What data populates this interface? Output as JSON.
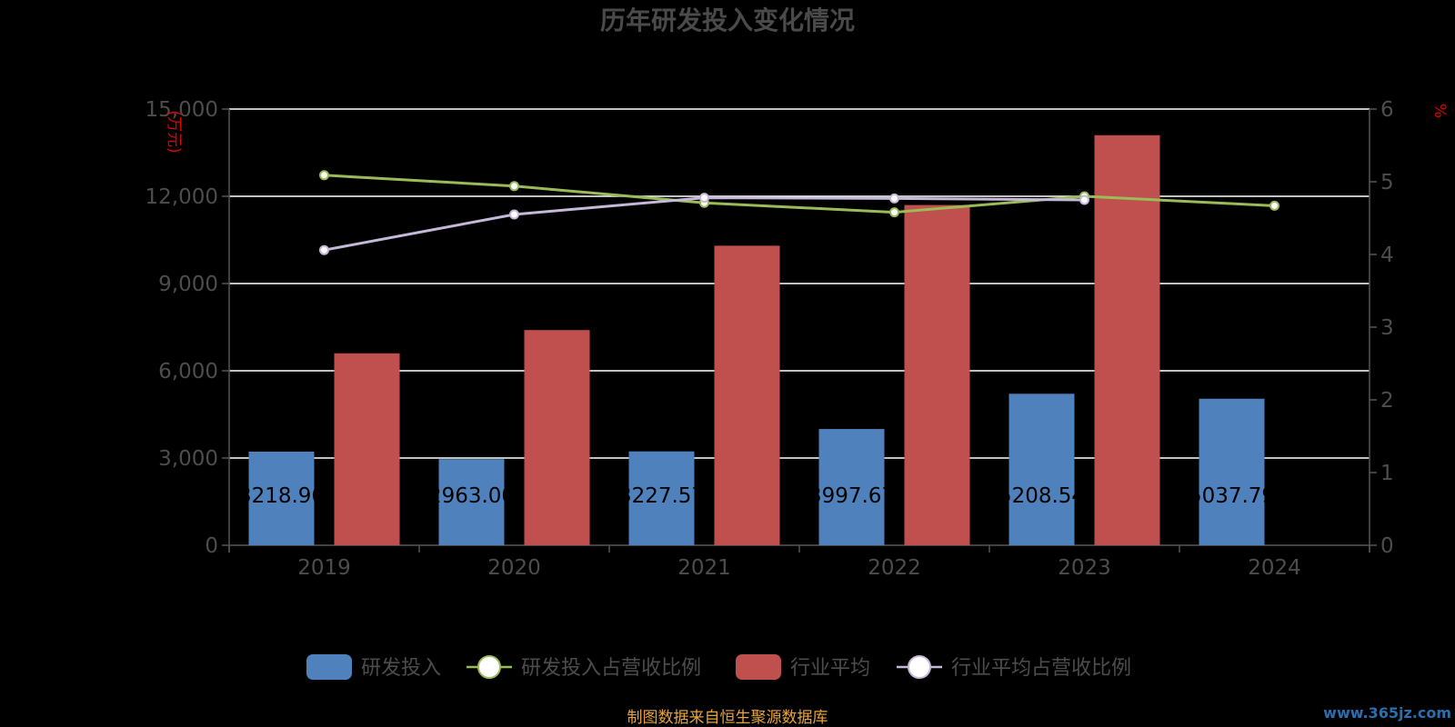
{
  "chart_data": {
    "type": "bar",
    "title": "历年研发投入变化情况",
    "categories": [
      "2019",
      "2020",
      "2021",
      "2022",
      "2023",
      "2024"
    ],
    "series": [
      {
        "name": "研发投入",
        "kind": "bar",
        "axis": "left",
        "color": "#4f81bd",
        "values": [
          3218.96,
          2963.0,
          3227.57,
          3997.67,
          5208.54,
          5037.79
        ],
        "labels": [
          "3218.96",
          "2963.00",
          "3227.57",
          "3997.67",
          "5208.54",
          "5037.79"
        ]
      },
      {
        "name": "研发投入占营收比例",
        "kind": "line",
        "axis": "right",
        "color": "#9bbb59",
        "values": [
          5.09,
          4.94,
          4.71,
          4.58,
          4.8,
          4.67
        ]
      },
      {
        "name": "行业平均",
        "kind": "bar",
        "axis": "left",
        "color": "#c0504d",
        "values": [
          6600,
          7400,
          10300,
          11700,
          14100,
          null
        ]
      },
      {
        "name": "行业平均占营收比例",
        "kind": "line",
        "axis": "right",
        "color": "#c5b8d8",
        "values": [
          4.06,
          4.55,
          4.78,
          4.77,
          4.75,
          null
        ]
      }
    ],
    "y_left": {
      "unit": "(万元)",
      "min": 0,
      "max": 15000,
      "ticks": [
        "0",
        "3,000",
        "6,000",
        "9,000",
        "12,000",
        "15,000"
      ]
    },
    "y_right": {
      "unit": "%",
      "min": 0,
      "max": 6,
      "ticks": [
        "0",
        "1",
        "2",
        "3",
        "4",
        "5",
        "6"
      ]
    },
    "grid": true,
    "legend_position": "bottom"
  },
  "footer": {
    "source": "制图数据来自恒生聚源数据库",
    "watermark": "www.365jz.com"
  }
}
